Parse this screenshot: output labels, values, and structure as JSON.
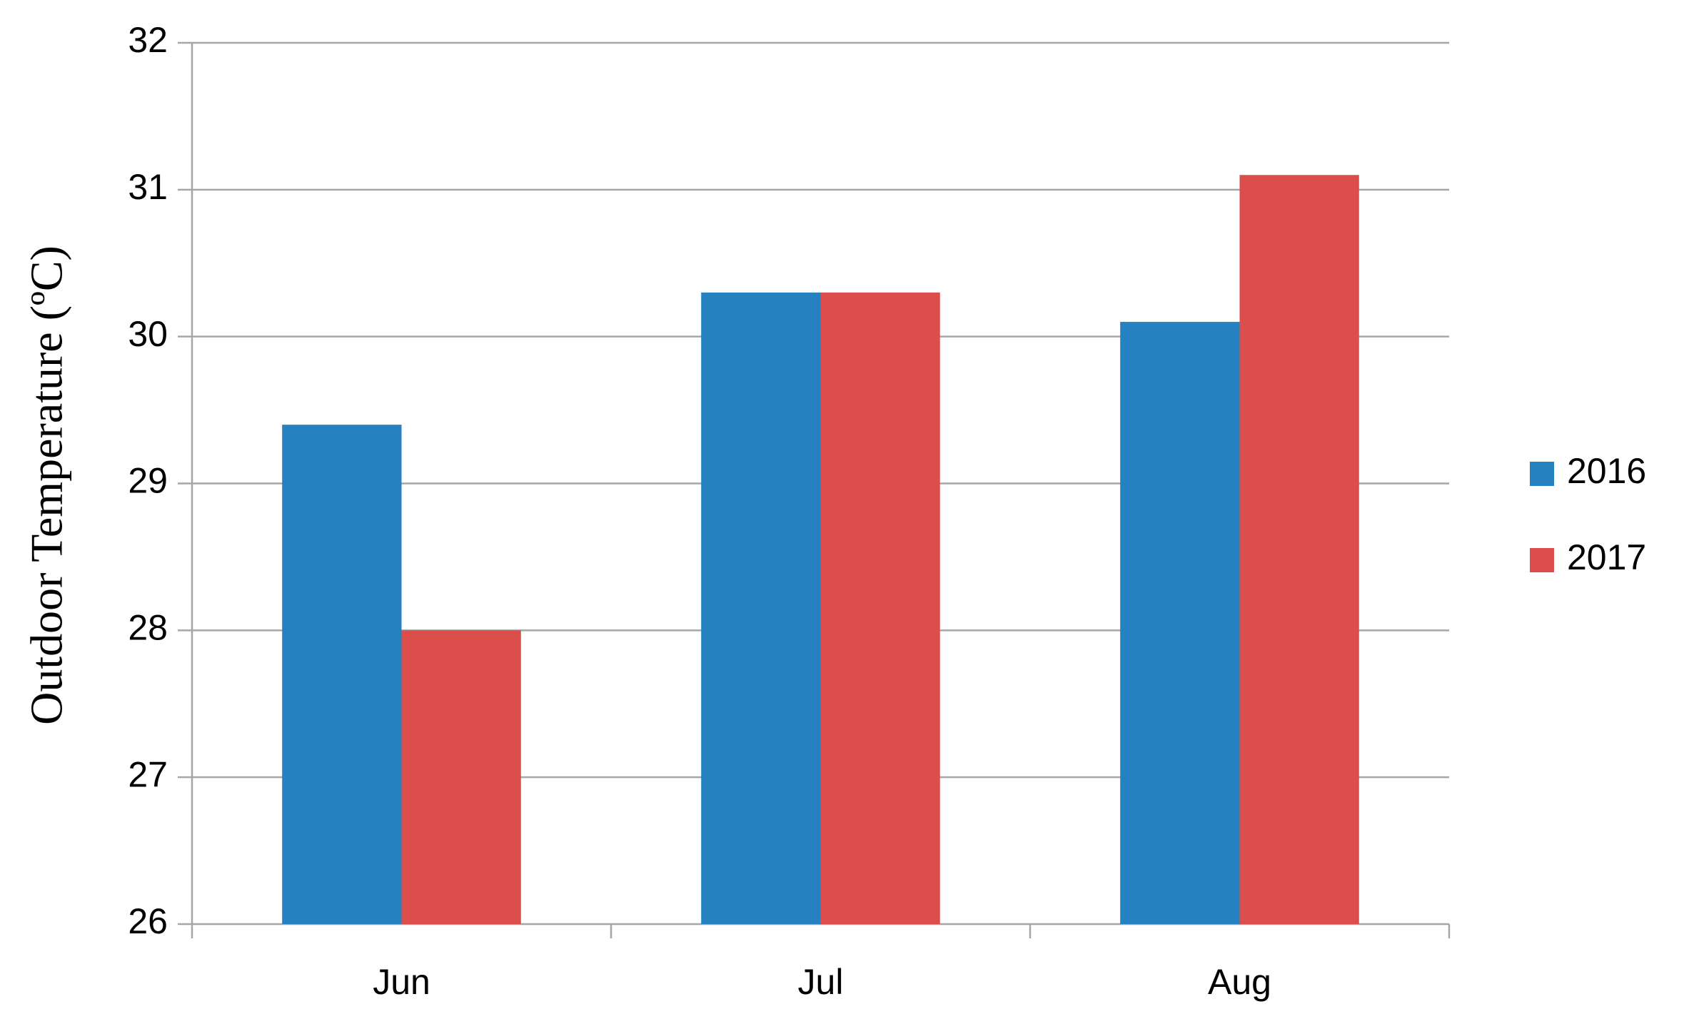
{
  "chart_data": {
    "type": "bar",
    "y_label": "Outdoor Temperature (ºC)",
    "categories": [
      "Jun",
      "Jul",
      "Aug"
    ],
    "series": [
      {
        "name": "2016",
        "color": "#2581c0",
        "values": [
          29.4,
          30.3,
          30.1
        ]
      },
      {
        "name": "2017",
        "color": "#dc4e4c",
        "values": [
          28.0,
          30.3,
          31.1
        ]
      }
    ],
    "ylim": [
      26,
      32
    ],
    "yticks": [
      26,
      27,
      28,
      29,
      30,
      31,
      32
    ],
    "grid": true,
    "legend": "right"
  }
}
